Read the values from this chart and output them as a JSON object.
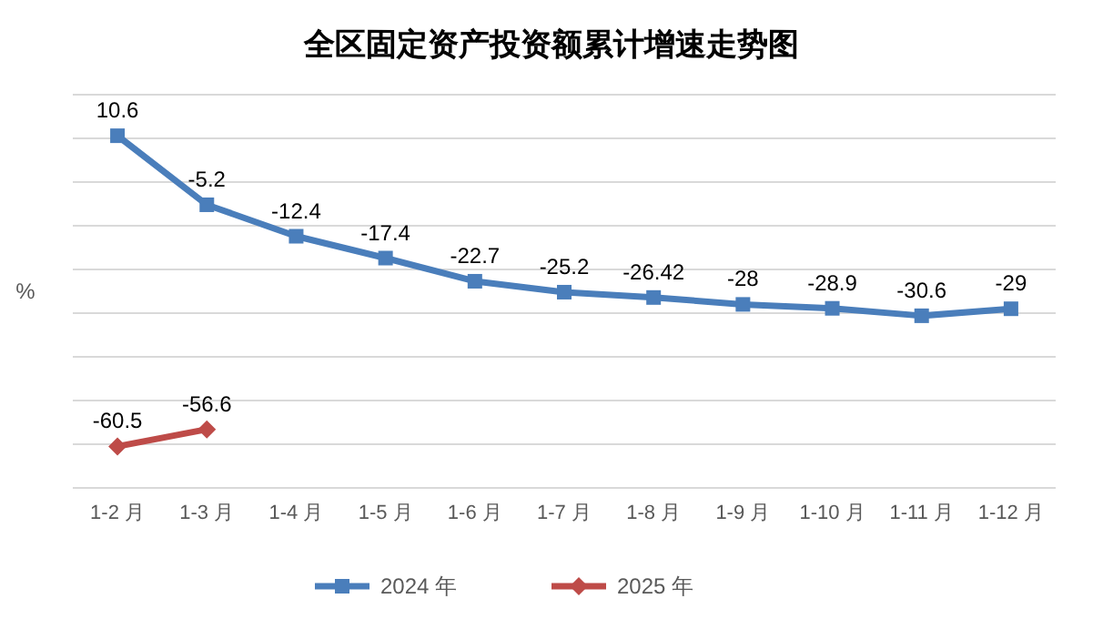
{
  "chart_data": {
    "type": "line",
    "title": "全区固定资产投资额累计增速走势图",
    "ylabel": "%",
    "categories": [
      "1-2 月",
      "1-3 月",
      "1-4 月",
      "1-5 月",
      "1-6 月",
      "1-7 月",
      "1-8 月",
      "1-9 月",
      "1-10 月",
      "1-11 月",
      "1-12 月"
    ],
    "series": [
      {
        "name": "2024 年",
        "color": "#4a7ebb",
        "marker": "square",
        "values": [
          10.6,
          -5.2,
          -12.4,
          -17.4,
          -22.7,
          -25.2,
          -26.42,
          -28,
          -28.9,
          -30.6,
          -29
        ]
      },
      {
        "name": "2025 年",
        "color": "#be4b48",
        "marker": "diamond",
        "values": [
          -60.5,
          -56.6,
          null,
          null,
          null,
          null,
          null,
          null,
          null,
          null,
          null
        ]
      }
    ],
    "ylim": [
      -70,
      20
    ],
    "yticks": [
      {
        "value": -70,
        "label": null
      },
      {
        "value": -60,
        "label": null
      },
      {
        "value": -50,
        "label": null
      },
      {
        "value": -40,
        "label": null
      },
      {
        "value": -30,
        "label": null
      },
      {
        "value": -20,
        "label": null
      },
      {
        "value": -10,
        "label": null
      },
      {
        "value": 0,
        "label": null
      },
      {
        "value": 10,
        "label": null
      },
      {
        "value": 20,
        "label": null
      }
    ],
    "tick_labels": "x",
    "grid": "y",
    "data_labels": true,
    "legend": "bottom",
    "line_style": "solid"
  }
}
